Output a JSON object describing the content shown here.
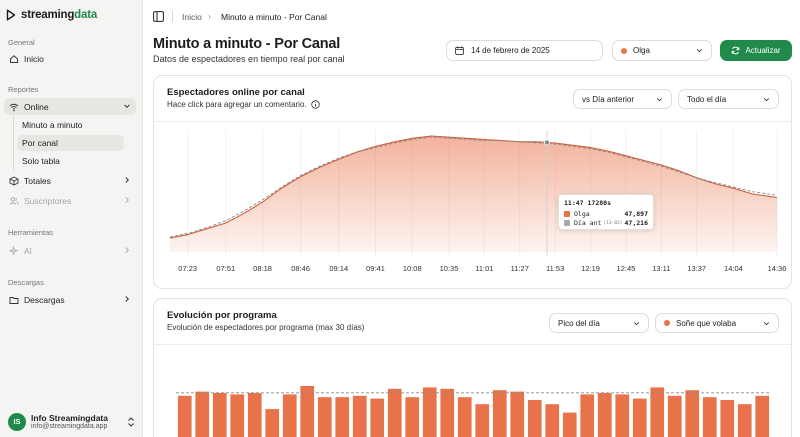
{
  "brand": {
    "part1": "streaming",
    "part2": "data",
    "accent_color": "#1f8a49"
  },
  "sidebar": {
    "sections": {
      "general": "General",
      "reportes": "Reportes",
      "herramientas": "Herramientas",
      "descargas": "Descargas"
    },
    "items": {
      "inicio": "Inicio",
      "online": "Online",
      "minuto": "Minuto a minuto",
      "por_canal": "Por canal",
      "solo_tabla": "Solo tabla",
      "totales": "Totales",
      "suscriptores": "Suscriptores",
      "ai": "AI",
      "descargas": "Descargas"
    },
    "user": {
      "initials": "IS",
      "name": "Info Streamingdata",
      "email": "info@streamingdata.app"
    }
  },
  "breadcrumb": {
    "home": "Inicio",
    "current": "Minuto a minuto - Por Canal"
  },
  "page": {
    "title": "Minuto a minuto - Por Canal",
    "subtitle": "Datos de espectadores en tiempo real por canal"
  },
  "controls": {
    "date": "14 de febrero de 2025",
    "channel": "Olga",
    "channel_color": "#e8734a",
    "refresh": "Actualizar"
  },
  "online_card": {
    "title": "Espectadores online por canal",
    "subtitle": "Hace click para agregar un comentario.",
    "compare_select": "vs Día anterior",
    "range_select": "Todo el día",
    "tooltip": {
      "time": "11:47",
      "extra": "17280s",
      "series": [
        {
          "name": "Olga",
          "value": "47,897",
          "color": "#e8734a",
          "note": ""
        },
        {
          "name": "Día ant",
          "value": "47,216",
          "color": "#a9a9a9",
          "note": "(13-02)"
        }
      ]
    }
  },
  "program_card": {
    "title": "Evolución por programa",
    "subtitle": "Evolución de espectadores por programa (max 30 días)",
    "metric_select": "Pico del día",
    "program_select": "Soñe que volaba"
  },
  "chart_data": [
    {
      "type": "area",
      "x": [
        "07:10",
        "07:23",
        "07:37",
        "07:51",
        "08:04",
        "08:18",
        "08:32",
        "08:46",
        "09:00",
        "09:14",
        "09:27",
        "09:41",
        "09:55",
        "10:08",
        "10:22",
        "10:35",
        "10:48",
        "11:01",
        "11:14",
        "11:27",
        "11:40",
        "11:53",
        "12:06",
        "12:19",
        "12:32",
        "12:45",
        "12:58",
        "13:11",
        "13:24",
        "13:37",
        "13:50",
        "14:04",
        "14:18",
        "14:36"
      ],
      "series": [
        {
          "name": "Olga",
          "color": "#e8734a",
          "values": [
            0.12,
            0.15,
            0.2,
            0.25,
            0.33,
            0.43,
            0.55,
            0.65,
            0.73,
            0.8,
            0.86,
            0.91,
            0.95,
            0.98,
            1.0,
            0.99,
            0.98,
            0.97,
            0.96,
            0.95,
            0.95,
            0.94,
            0.92,
            0.9,
            0.87,
            0.83,
            0.79,
            0.75,
            0.7,
            0.64,
            0.59,
            0.55,
            0.5,
            0.47
          ]
        },
        {
          "name": "Día ant",
          "color": "#8a8a8a",
          "values": [
            0.13,
            0.16,
            0.21,
            0.27,
            0.35,
            0.45,
            0.56,
            0.66,
            0.74,
            0.81,
            0.86,
            0.9,
            0.94,
            0.97,
            0.99,
            0.98,
            0.97,
            0.96,
            0.96,
            0.95,
            0.94,
            0.93,
            0.91,
            0.89,
            0.86,
            0.82,
            0.78,
            0.74,
            0.69,
            0.64,
            0.6,
            0.56,
            0.52,
            0.49
          ]
        }
      ],
      "tick_labels": [
        "07:23",
        "07:51",
        "08:18",
        "08:46",
        "09:14",
        "09:41",
        "10:08",
        "10:35",
        "11:01",
        "11:27",
        "11:53",
        "12:19",
        "12:45",
        "13:11",
        "13:37",
        "14:04",
        "14:36"
      ],
      "hover_x": "11:47"
    },
    {
      "type": "bar",
      "values": [
        0.76,
        0.82,
        0.8,
        0.78,
        0.8,
        0.57,
        0.78,
        0.9,
        0.74,
        0.74,
        0.76,
        0.72,
        0.86,
        0.74,
        0.88,
        0.86,
        0.74,
        0.64,
        0.84,
        0.82,
        0.7,
        0.64,
        0.52,
        0.78,
        0.8,
        0.78,
        0.72,
        0.88,
        0.76,
        0.84,
        0.74,
        0.7,
        0.64,
        0.76
      ],
      "reference_line": 0.76,
      "color": "#e8734a"
    }
  ]
}
